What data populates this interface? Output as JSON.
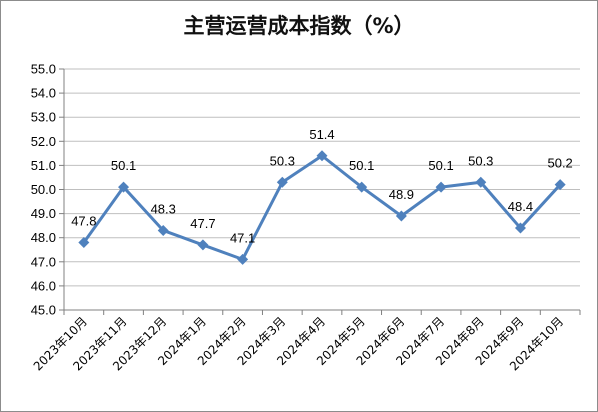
{
  "chart_data": {
    "type": "line",
    "title": "主营运营成本指数（%）",
    "xlabel": "",
    "ylabel": "",
    "categories": [
      "2023年10月",
      "2023年11月",
      "2023年12月",
      "2024年1月",
      "2024年2月",
      "2024年3月",
      "2024年4月",
      "2024年5月",
      "2024年6月",
      "2024年7月",
      "2024年8月",
      "2024年9月",
      "2024年10月"
    ],
    "series": [
      {
        "values": [
          47.8,
          50.1,
          48.3,
          47.7,
          47.1,
          50.3,
          51.4,
          50.1,
          48.9,
          50.1,
          50.3,
          48.4,
          50.2
        ]
      }
    ],
    "ylim": [
      45.0,
      55.0
    ],
    "yticks": [
      "45.0",
      "46.0",
      "47.0",
      "48.0",
      "49.0",
      "50.0",
      "51.0",
      "52.0",
      "53.0",
      "54.0",
      "55.0"
    ],
    "data_labels": [
      "47.8",
      "50.1",
      "48.3",
      "47.7",
      "47.1",
      "50.3",
      "51.4",
      "50.1",
      "48.9",
      "50.1",
      "50.3",
      "48.4",
      "50.2"
    ],
    "grid": true,
    "legend": "none",
    "colors": {
      "line": "#4f81bd",
      "marker": "#4f81bd",
      "grid": "#bfbfbf",
      "axis": "#808080"
    }
  }
}
